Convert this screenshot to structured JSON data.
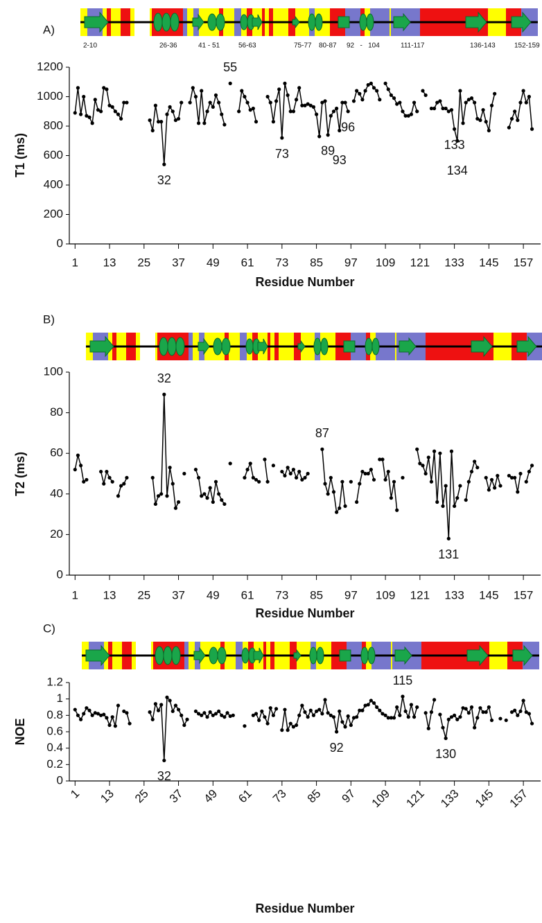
{
  "chart_data": [
    {
      "type": "line",
      "panel_label": "A)",
      "ylabel": "T1 (ms)",
      "xlabel": "Residue Number",
      "color": "#000000",
      "structure_labels": [
        "2-10",
        "26-36",
        "41 - 51",
        "56-63",
        "75-77",
        "80-87",
        "92   -   104",
        "111-117",
        "136-143",
        "152-159"
      ],
      "xlim": [
        -1,
        163
      ],
      "xticks": [
        1,
        13,
        25,
        37,
        49,
        61,
        73,
        85,
        97,
        109,
        121,
        133,
        145,
        157
      ],
      "ylim": [
        0,
        1200
      ],
      "yticks": [
        0,
        200,
        400,
        600,
        800,
        1000,
        1200
      ],
      "annotations": [
        55,
        32,
        73,
        89,
        96,
        93,
        133,
        134
      ],
      "x": [
        1,
        2,
        3,
        4,
        5,
        6,
        7,
        8,
        9,
        10,
        11,
        12,
        13,
        14,
        15,
        16,
        17,
        18,
        19,
        20,
        21,
        22,
        23,
        24,
        25,
        26,
        27,
        28,
        29,
        30,
        31,
        32,
        33,
        34,
        35,
        36,
        37,
        38,
        39,
        40,
        41,
        42,
        43,
        44,
        45,
        46,
        47,
        48,
        49,
        50,
        51,
        52,
        53,
        54,
        55,
        56,
        57,
        58,
        59,
        60,
        61,
        62,
        63,
        64,
        65,
        66,
        67,
        68,
        69,
        70,
        71,
        72,
        73,
        74,
        75,
        76,
        77,
        78,
        79,
        80,
        81,
        82,
        83,
        84,
        85,
        86,
        87,
        88,
        89,
        90,
        91,
        92,
        93,
        94,
        95,
        96,
        97,
        98,
        99,
        100,
        101,
        102,
        103,
        104,
        105,
        106,
        107,
        108,
        109,
        110,
        111,
        112,
        113,
        114,
        115,
        116,
        117,
        118,
        119,
        120,
        121,
        122,
        123,
        124,
        125,
        126,
        127,
        128,
        129,
        130,
        131,
        132,
        133,
        134,
        135,
        136,
        137,
        138,
        139,
        140,
        141,
        142,
        143,
        144,
        145,
        146,
        147,
        148,
        149,
        150,
        151,
        152,
        153,
        154,
        155,
        156,
        157,
        158,
        159,
        160
      ],
      "values": [
        890,
        1060,
        880,
        1000,
        870,
        860,
        820,
        980,
        910,
        900,
        1060,
        1050,
        940,
        930,
        900,
        880,
        850,
        960,
        960,
        null,
        null,
        null,
        null,
        null,
        null,
        null,
        840,
        770,
        940,
        830,
        830,
        540,
        880,
        930,
        900,
        840,
        850,
        960,
        null,
        null,
        960,
        1060,
        1000,
        820,
        1040,
        820,
        900,
        960,
        930,
        1010,
        960,
        880,
        810,
        null,
        1090,
        null,
        null,
        900,
        1040,
        1000,
        960,
        910,
        920,
        830,
        null,
        null,
        null,
        1000,
        960,
        830,
        970,
        1050,
        720,
        1090,
        1010,
        900,
        900,
        980,
        1060,
        940,
        940,
        950,
        940,
        930,
        880,
        730,
        960,
        970,
        740,
        870,
        900,
        920,
        770,
        960,
        960,
        900,
        null,
        970,
        1040,
        1020,
        980,
        1040,
        1080,
        1090,
        1060,
        1040,
        980,
        null,
        1090,
        1050,
        1010,
        990,
        950,
        960,
        900,
        870,
        870,
        880,
        960,
        900,
        null,
        1040,
        1010,
        null,
        920,
        920,
        960,
        970,
        920,
        920,
        900,
        910,
        780,
        700,
        1040,
        820,
        960,
        980,
        990,
        960,
        850,
        840,
        910,
        830,
        770,
        940,
        1020,
        null,
        null,
        null,
        null,
        790,
        850,
        900,
        840,
        960,
        1040,
        960,
        1000,
        780
      ]
    },
    {
      "type": "line",
      "panel_label": "B)",
      "ylabel": "T2 (ms)",
      "xlabel": "Residue Number",
      "color": "#000000",
      "xlim": [
        -1,
        163
      ],
      "xticks": [
        1,
        13,
        25,
        37,
        49,
        61,
        73,
        85,
        97,
        109,
        121,
        133,
        145,
        157
      ],
      "ylim": [
        0,
        100
      ],
      "yticks": [
        0,
        20,
        40,
        60,
        80,
        100
      ],
      "annotations": [
        32,
        87,
        131
      ],
      "x": [
        1,
        2,
        3,
        4,
        5,
        6,
        7,
        8,
        9,
        10,
        11,
        12,
        13,
        14,
        15,
        16,
        17,
        18,
        19,
        20,
        21,
        22,
        23,
        24,
        25,
        26,
        27,
        28,
        29,
        30,
        31,
        32,
        33,
        34,
        35,
        36,
        37,
        38,
        39,
        40,
        41,
        42,
        43,
        44,
        45,
        46,
        47,
        48,
        49,
        50,
        51,
        52,
        53,
        54,
        55,
        56,
        57,
        58,
        59,
        60,
        61,
        62,
        63,
        64,
        65,
        66,
        67,
        68,
        69,
        70,
        71,
        72,
        73,
        74,
        75,
        76,
        77,
        78,
        79,
        80,
        81,
        82,
        83,
        84,
        85,
        86,
        87,
        88,
        89,
        90,
        91,
        92,
        93,
        94,
        95,
        96,
        97,
        98,
        99,
        100,
        101,
        102,
        103,
        104,
        105,
        106,
        107,
        108,
        109,
        110,
        111,
        112,
        113,
        114,
        115,
        116,
        117,
        118,
        119,
        120,
        121,
        122,
        123,
        124,
        125,
        126,
        127,
        128,
        129,
        130,
        131,
        132,
        133,
        134,
        135,
        136,
        137,
        138,
        139,
        140,
        141,
        142,
        143,
        144,
        145,
        146,
        147,
        148,
        149,
        150,
        151,
        152,
        153,
        154,
        155,
        156,
        157,
        158,
        159,
        160
      ],
      "values": [
        52,
        59,
        54,
        46,
        47,
        null,
        null,
        null,
        null,
        51,
        45,
        51,
        48,
        46,
        null,
        39,
        44,
        45,
        48,
        null,
        null,
        null,
        null,
        null,
        null,
        null,
        null,
        48,
        35,
        39,
        40,
        89,
        39,
        53,
        45,
        33,
        36,
        null,
        50,
        null,
        null,
        null,
        52,
        48,
        39,
        40,
        38,
        43,
        36,
        46,
        40,
        37,
        35,
        null,
        55,
        null,
        null,
        null,
        null,
        48,
        52,
        55,
        48,
        47,
        46,
        null,
        57,
        46,
        null,
        54,
        null,
        null,
        51,
        49,
        53,
        50,
        52,
        48,
        51,
        47,
        48,
        50,
        null,
        null,
        null,
        null,
        62,
        45,
        40,
        48,
        41,
        31,
        33,
        46,
        34,
        null,
        46,
        null,
        36,
        45,
        51,
        50,
        50,
        52,
        47,
        null,
        57,
        57,
        47,
        51,
        38,
        46,
        32,
        null,
        48,
        null,
        null,
        null,
        null,
        62,
        55,
        54,
        50,
        58,
        46,
        61,
        36,
        60,
        34,
        44,
        18,
        61,
        34,
        38,
        44,
        null,
        37,
        46,
        51,
        56,
        53,
        null,
        null,
        48,
        42,
        47,
        43,
        49,
        44,
        null,
        null,
        49,
        48,
        48,
        41,
        50,
        null,
        46,
        51,
        54
      ]
    },
    {
      "type": "line",
      "panel_label": "C)",
      "ylabel": "NOE",
      "xlabel": "Residue Number",
      "color": "#000000",
      "xlim": [
        -1,
        163
      ],
      "xticks": [
        1,
        13,
        25,
        37,
        49,
        61,
        73,
        85,
        97,
        109,
        121,
        133,
        145,
        157
      ],
      "xtick_rotation": -45,
      "ylim": [
        0,
        1.2
      ],
      "yticks": [
        0,
        0.2,
        0.4,
        0.6,
        0.8,
        1,
        1.2
      ],
      "annotations": [
        32,
        92,
        115,
        130
      ],
      "x": [
        1,
        2,
        3,
        4,
        5,
        6,
        7,
        8,
        9,
        10,
        11,
        12,
        13,
        14,
        15,
        16,
        17,
        18,
        19,
        20,
        21,
        22,
        23,
        24,
        25,
        26,
        27,
        28,
        29,
        30,
        31,
        32,
        33,
        34,
        35,
        36,
        37,
        38,
        39,
        40,
        41,
        42,
        43,
        44,
        45,
        46,
        47,
        48,
        49,
        50,
        51,
        52,
        53,
        54,
        55,
        56,
        57,
        58,
        59,
        60,
        61,
        62,
        63,
        64,
        65,
        66,
        67,
        68,
        69,
        70,
        71,
        72,
        73,
        74,
        75,
        76,
        77,
        78,
        79,
        80,
        81,
        82,
        83,
        84,
        85,
        86,
        87,
        88,
        89,
        90,
        91,
        92,
        93,
        94,
        95,
        96,
        97,
        98,
        99,
        100,
        101,
        102,
        103,
        104,
        105,
        106,
        107,
        108,
        109,
        110,
        111,
        112,
        113,
        114,
        115,
        116,
        117,
        118,
        119,
        120,
        121,
        122,
        123,
        124,
        125,
        126,
        127,
        128,
        129,
        130,
        131,
        132,
        133,
        134,
        135,
        136,
        137,
        138,
        139,
        140,
        141,
        142,
        143,
        144,
        145,
        146,
        147,
        148,
        149,
        150,
        151,
        152,
        153,
        154,
        155,
        156,
        157,
        158,
        159,
        160
      ],
      "values": [
        0.87,
        0.8,
        0.75,
        0.82,
        0.89,
        0.86,
        0.8,
        0.83,
        0.82,
        0.8,
        0.81,
        0.77,
        0.68,
        0.78,
        0.67,
        0.92,
        null,
        0.85,
        0.83,
        0.7,
        null,
        null,
        null,
        null,
        null,
        null,
        0.84,
        0.75,
        0.94,
        0.86,
        0.93,
        0.25,
        1.02,
        0.98,
        0.85,
        0.92,
        0.87,
        0.8,
        0.68,
        0.75,
        null,
        null,
        0.85,
        0.82,
        0.8,
        0.83,
        0.78,
        0.84,
        0.8,
        0.82,
        0.85,
        0.8,
        0.78,
        0.83,
        0.79,
        0.8,
        null,
        null,
        null,
        0.67,
        null,
        null,
        0.8,
        0.82,
        0.74,
        0.85,
        0.78,
        0.7,
        0.89,
        0.8,
        0.88,
        null,
        0.62,
        0.87,
        0.62,
        0.7,
        0.66,
        0.68,
        0.8,
        0.92,
        0.84,
        0.78,
        0.86,
        0.8,
        0.85,
        0.87,
        0.82,
        0.99,
        0.83,
        0.8,
        0.78,
        0.6,
        0.85,
        0.72,
        0.66,
        0.79,
        0.68,
        0.77,
        0.78,
        0.86,
        0.86,
        0.92,
        0.93,
        0.98,
        0.95,
        0.9,
        0.86,
        0.82,
        0.8,
        0.77,
        0.77,
        0.77,
        0.9,
        0.8,
        1.03,
        0.85,
        0.78,
        0.93,
        0.78,
        0.9,
        null,
        null,
        0.83,
        0.64,
        0.84,
        0.99,
        null,
        0.81,
        0.65,
        0.52,
        0.75,
        0.78,
        0.8,
        0.75,
        0.78,
        0.89,
        0.88,
        0.83,
        0.9,
        0.65,
        0.77,
        0.89,
        0.84,
        0.84,
        0.9,
        0.74,
        null,
        null,
        0.76,
        null,
        0.74,
        null,
        0.84,
        0.86,
        0.8,
        0.85,
        0.98,
        0.84,
        0.82,
        0.7
      ]
    }
  ]
}
